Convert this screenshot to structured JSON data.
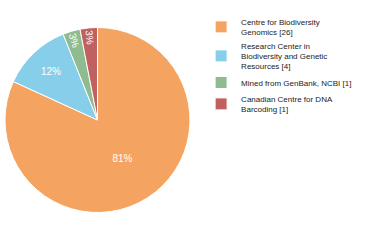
{
  "chart_data": {
    "type": "pie",
    "categories": [
      "Centre for Biodiversity\nGenomics [26]",
      "Research Center in\nBiodiversity and Genetic\nResources [4]",
      "Mined from GenBank, NCBI [1]",
      "Canadian Centre for DNA\nBarcoding [1]"
    ],
    "values": [
      81,
      12,
      3,
      3
    ],
    "value_labels": [
      "81%",
      "12%",
      "3%",
      "3%"
    ],
    "colors": [
      "#F4A460",
      "#87CEEB",
      "#8FBC8F",
      "#C06060"
    ],
    "data_labels": true,
    "legend": "upper right"
  }
}
